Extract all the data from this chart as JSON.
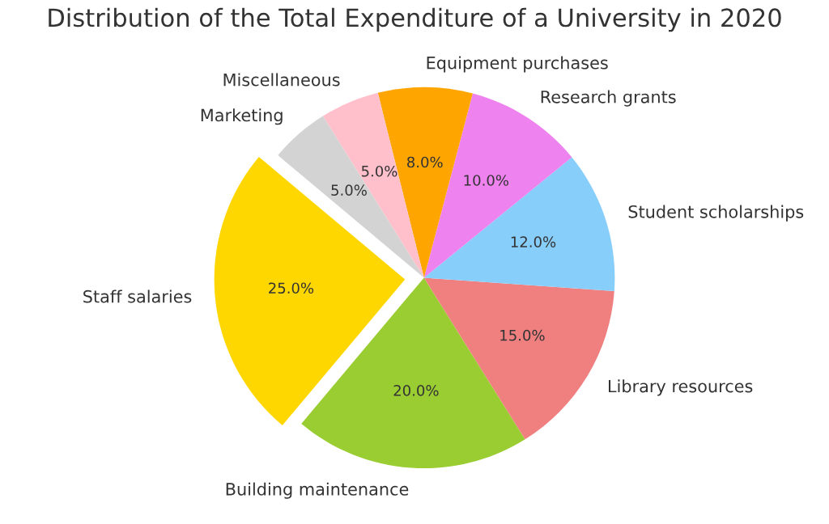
{
  "chart_data": {
    "type": "pie",
    "title": "Distribution of the Total Expenditure of a University in 2020",
    "categories": [
      "Staff salaries",
      "Building maintenance",
      "Library resources",
      "Student scholarships",
      "Research grants",
      "Equipment purchases",
      "Miscellaneous",
      "Marketing"
    ],
    "values": [
      25,
      20,
      15,
      12,
      10,
      8,
      5,
      5
    ],
    "colors": [
      "#ffd700",
      "#9acd32",
      "#f08080",
      "#87cefa",
      "#ee82ee",
      "#ffa500",
      "#ffc0cb",
      "#d3d3d3"
    ],
    "value_labels": [
      "25.0%",
      "20.0%",
      "15.0%",
      "12.0%",
      "10.0%",
      "8.0%",
      "5.0%",
      "5.0%"
    ]
  }
}
